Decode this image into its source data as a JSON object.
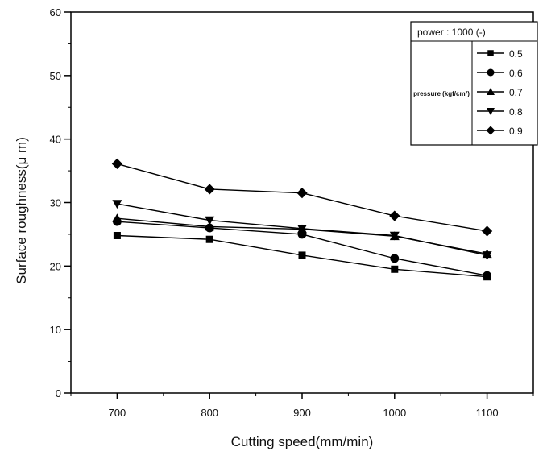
{
  "chart_data": {
    "type": "line",
    "title": "",
    "xlabel": "Cutting speed(mm/min)",
    "ylabel": "Surface roughness(μ m)",
    "categories": [
      "700",
      "800",
      "900",
      "1000",
      "1100"
    ],
    "x": [
      700,
      800,
      900,
      1000,
      1100
    ],
    "ylim": [
      0,
      60
    ],
    "yticks": [
      0,
      10,
      20,
      30,
      40,
      50,
      60
    ],
    "grid": false,
    "legend": {
      "placement": "top-right",
      "header": "power : 1000 (-)",
      "group_label": "pressure (kgf/cm²)"
    },
    "series": [
      {
        "name": "0.5",
        "marker": "square",
        "values": [
          24.8,
          24.2,
          21.7,
          19.5,
          18.3
        ]
      },
      {
        "name": "0.6",
        "marker": "circle",
        "values": [
          27.0,
          26.0,
          25.0,
          21.2,
          18.5
        ]
      },
      {
        "name": "0.7",
        "marker": "triangle-up",
        "values": [
          27.5,
          26.2,
          25.8,
          24.7,
          21.9
        ]
      },
      {
        "name": "0.8",
        "marker": "triangle-down",
        "values": [
          29.8,
          27.2,
          25.9,
          24.8,
          21.7
        ]
      },
      {
        "name": "0.9",
        "marker": "diamond",
        "values": [
          36.1,
          32.1,
          31.5,
          27.9,
          25.5
        ]
      }
    ]
  }
}
